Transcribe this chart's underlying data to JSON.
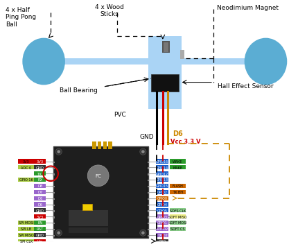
{
  "bg_color": "#ffffff",
  "colors": {
    "light_blue": "#aad4f5",
    "ball_blue": "#5badd3",
    "dark_black": "#1a1a1a",
    "wire_black": "#000000",
    "wire_red": "#cc0000",
    "wire_yellow": "#cc8800",
    "nodemcu_bg": "#111111",
    "pin_blue": "#1a5fcc",
    "pin_green": "#2a9a2a",
    "pin_red": "#cc0000",
    "pin_gray": "#444444",
    "pin_purple": "#7744bb",
    "pin_orange": "#cc6600",
    "pin_yellow_green": "#aacc44",
    "pin_light_green": "#88cc88"
  },
  "labels": {
    "ping_pong": "4 x Half\nPing Pong\nBall",
    "wood_sticks": "4 x Wood\nSticks",
    "neodimium": "Neodimium Magnet",
    "ball_bearing": "Ball Bearing",
    "pvc": "PVC",
    "hall_effect": "Hall Effect Sensor",
    "gnd": "GND",
    "d6": "D6",
    "vcc": "Vcc 3.3 V"
  }
}
